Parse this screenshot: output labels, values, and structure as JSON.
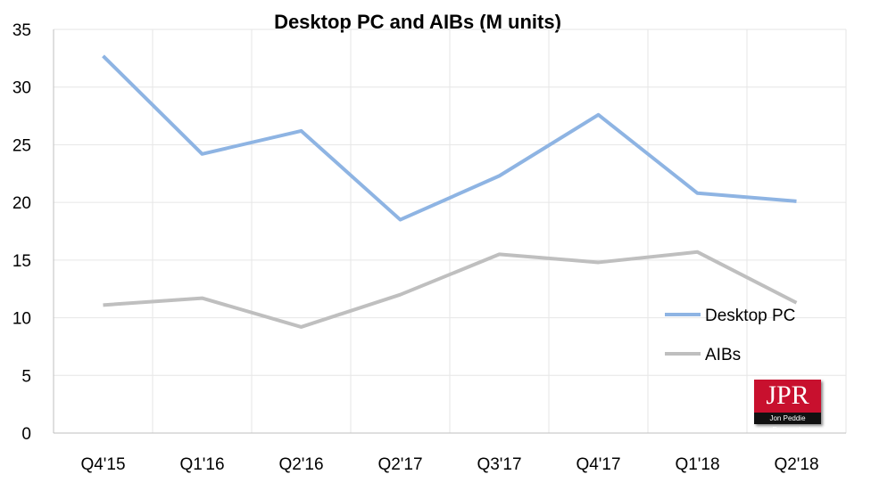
{
  "chart_data": {
    "type": "line",
    "title": "Desktop PC and AIBs (M units)",
    "categories": [
      "Q4'15",
      "Q1'16",
      "Q2'16",
      "Q2'17",
      "Q3'17",
      "Q4'17",
      "Q1'18",
      "Q2'18"
    ],
    "series": [
      {
        "name": "Desktop PC",
        "color": "#8eb4e3",
        "values": [
          32.7,
          24.2,
          26.2,
          18.5,
          22.3,
          27.6,
          20.8,
          20.1
        ]
      },
      {
        "name": "AIBs",
        "color": "#bfbfbf",
        "values": [
          11.1,
          11.7,
          9.2,
          12.0,
          15.5,
          14.8,
          15.7,
          11.3
        ]
      }
    ],
    "ylim": [
      0,
      35
    ],
    "yticks": [
      0,
      5,
      10,
      15,
      20,
      25,
      30,
      35
    ],
    "grid": true,
    "legend": "right"
  },
  "logo": {
    "text": "JPR",
    "subtext": "Jon Peddie Research"
  }
}
